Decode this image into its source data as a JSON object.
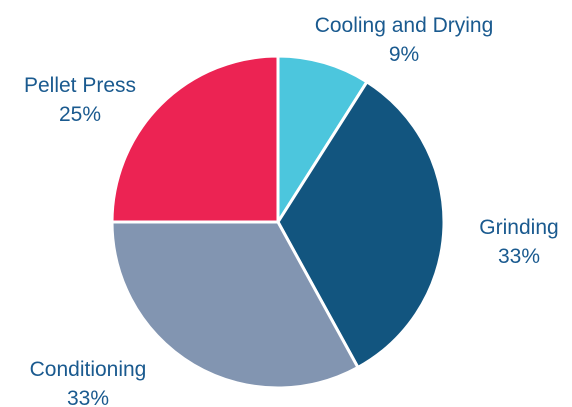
{
  "chart_data": {
    "type": "pie",
    "slices": [
      {
        "label": "Cooling and Drying",
        "value": 9,
        "display": "9%",
        "color": "#4cc6dd"
      },
      {
        "label": "Grinding",
        "value": 33,
        "display": "33%",
        "color": "#12557f"
      },
      {
        "label": "Conditioning",
        "value": 33,
        "display": "33%",
        "color": "#8295b1"
      },
      {
        "label": "Pellet Press",
        "value": 25,
        "display": "25%",
        "color": "#ec2353"
      }
    ],
    "start_angle_deg": 0,
    "direction": "clockwise",
    "label_color": "#1a5a8f",
    "separator_color": "#ffffff"
  }
}
